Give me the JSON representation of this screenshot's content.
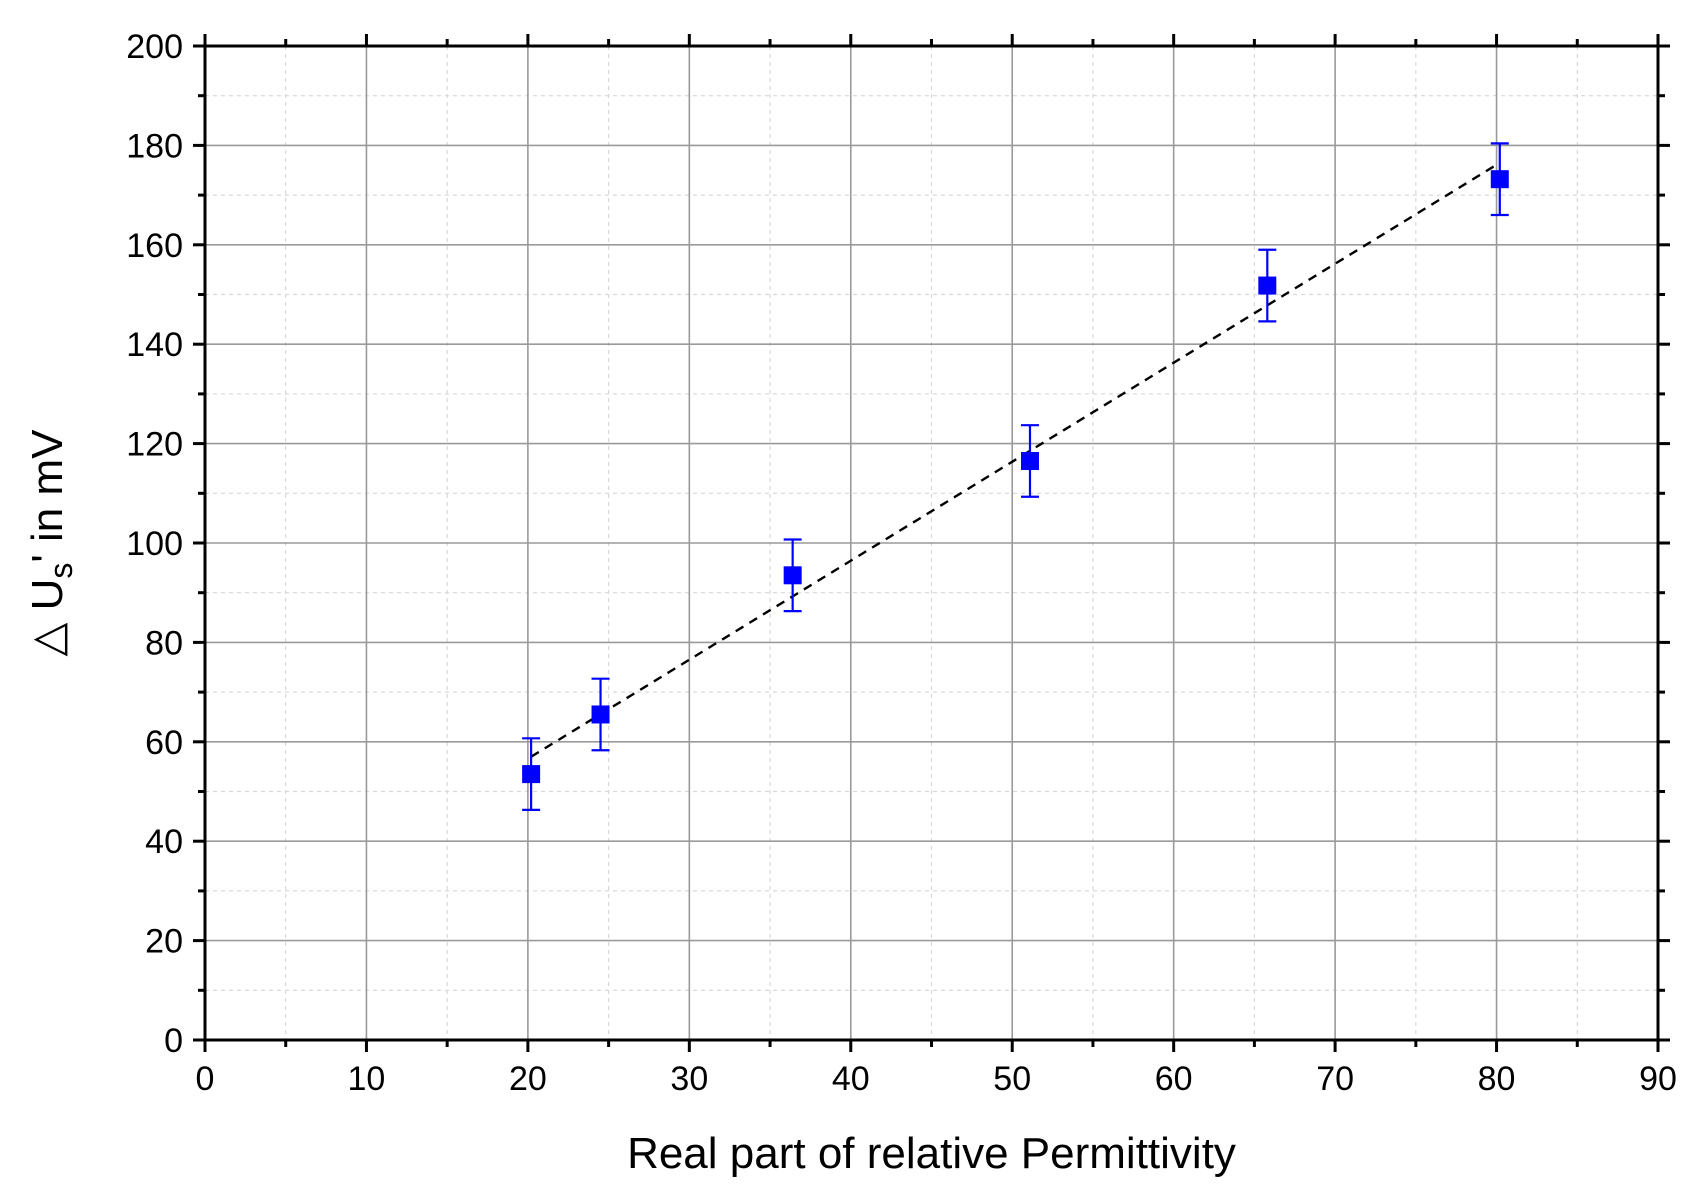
{
  "chart_data": {
    "type": "scatter",
    "xlabel": "Real part of relative Permittivity",
    "ylabel_prefix": "△ U",
    "ylabel_sub": "s",
    "ylabel_suffix": "' in mV",
    "xlim": [
      0,
      90
    ],
    "ylim": [
      0,
      200
    ],
    "x_ticks": [
      0,
      10,
      20,
      30,
      40,
      50,
      60,
      70,
      80,
      90
    ],
    "y_ticks": [
      0,
      20,
      40,
      60,
      80,
      100,
      120,
      140,
      160,
      180,
      200
    ],
    "x_tick_labels": [
      "0",
      "10",
      "20",
      "30",
      "40",
      "50",
      "60",
      "70",
      "80",
      "90"
    ],
    "y_tick_labels": [
      "0",
      "20",
      "40",
      "60",
      "80",
      "100",
      "120",
      "140",
      "160",
      "180",
      "200"
    ],
    "grid": true,
    "marker_color": "#0000ff",
    "fit_color": "#000000",
    "points": [
      {
        "x": 20.2,
        "y": 53.5,
        "err": 7.2
      },
      {
        "x": 24.5,
        "y": 65.5,
        "err": 7.2
      },
      {
        "x": 36.4,
        "y": 93.5,
        "err": 7.2
      },
      {
        "x": 51.1,
        "y": 116.5,
        "err": 7.2
      },
      {
        "x": 65.8,
        "y": 151.8,
        "err": 7.2
      },
      {
        "x": 80.2,
        "y": 173.2,
        "err": 7.2
      }
    ],
    "fit_line": {
      "x": [
        20.2,
        80.2
      ],
      "y": [
        57.0,
        176.5
      ]
    }
  }
}
